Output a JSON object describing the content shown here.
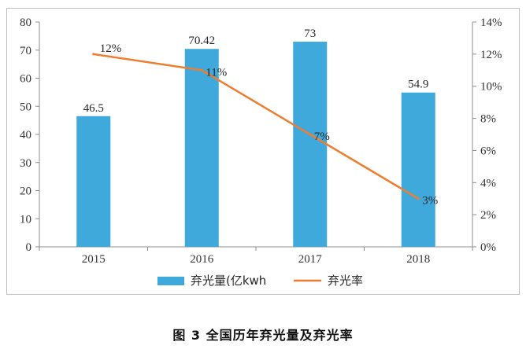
{
  "chart_data": {
    "type": "bar",
    "categories": [
      "2015",
      "2016",
      "2017",
      "2018"
    ],
    "series": [
      {
        "name": "弃光量(亿kwh",
        "type": "bar",
        "axis": "left",
        "values": [
          46.5,
          70.42,
          73,
          54.9
        ],
        "labels": [
          "46.5",
          "70.42",
          "73",
          "54.9"
        ],
        "color": "#3fa9dc"
      },
      {
        "name": "弃光率",
        "type": "line",
        "axis": "right",
        "values": [
          12,
          11,
          7,
          3
        ],
        "labels": [
          "12%",
          "11%",
          "7%",
          "3%"
        ],
        "color": "#ed7d31"
      }
    ],
    "y_left": {
      "ylim": [
        0,
        80
      ],
      "ticks": [
        "0",
        "10",
        "20",
        "30",
        "40",
        "50",
        "60",
        "70",
        "80"
      ]
    },
    "y_right": {
      "ylim": [
        0,
        14
      ],
      "ticks": [
        "0%",
        "2%",
        "4%",
        "6%",
        "8%",
        "10%",
        "12%",
        "14%"
      ]
    },
    "legend": "bottom",
    "grid": false
  },
  "caption": "图 3   全国历年弃光量及弃光率"
}
